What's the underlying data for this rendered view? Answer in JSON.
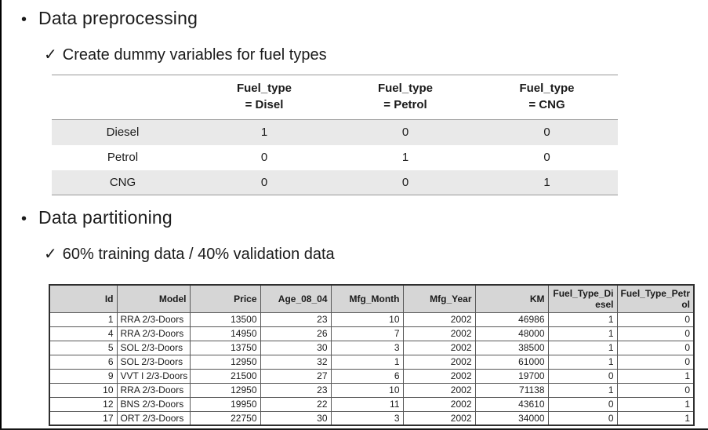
{
  "icons": {
    "bullet": "•",
    "check": "✓"
  },
  "sections": [
    {
      "title": "Data preprocessing",
      "subtitle": "Create dummy variables for fuel types"
    },
    {
      "title": "Data partitioning",
      "subtitle": "60% training data / 40% validation data"
    }
  ],
  "dummy_table": {
    "header": [
      "",
      "Fuel_type\n= Disel",
      "Fuel_type\n= Petrol",
      "Fuel_type\n= CNG"
    ],
    "rows": [
      {
        "label": "Diesel",
        "values": [
          "1",
          "0",
          "0"
        ]
      },
      {
        "label": "Petrol",
        "values": [
          "0",
          "1",
          "0"
        ]
      },
      {
        "label": "CNG",
        "values": [
          "0",
          "0",
          "1"
        ]
      }
    ]
  },
  "data_table": {
    "columns": [
      "Id",
      "Model",
      "Price",
      "Age_08_04",
      "Mfg_Month",
      "Mfg_Year",
      "KM",
      "Fuel_Type_Diesel",
      "Fuel_Type_Petrol"
    ],
    "rows": [
      [
        "1",
        "RRA 2/3-Doors",
        "13500",
        "23",
        "10",
        "2002",
        "46986",
        "1",
        "0"
      ],
      [
        "4",
        "RRA 2/3-Doors",
        "14950",
        "26",
        "7",
        "2002",
        "48000",
        "1",
        "0"
      ],
      [
        "5",
        "SOL 2/3-Doors",
        "13750",
        "30",
        "3",
        "2002",
        "38500",
        "1",
        "0"
      ],
      [
        "6",
        "SOL 2/3-Doors",
        "12950",
        "32",
        "1",
        "2002",
        "61000",
        "1",
        "0"
      ],
      [
        "9",
        "VVT I 2/3-Doors",
        "21500",
        "27",
        "6",
        "2002",
        "19700",
        "0",
        "1"
      ],
      [
        "10",
        "RRA 2/3-Doors",
        "12950",
        "23",
        "10",
        "2002",
        "71138",
        "1",
        "0"
      ],
      [
        "12",
        "BNS 2/3-Doors",
        "19950",
        "22",
        "11",
        "2002",
        "43610",
        "0",
        "1"
      ],
      [
        "17",
        "ORT 2/3-Doors",
        "22750",
        "30",
        "3",
        "2002",
        "34000",
        "0",
        "1"
      ]
    ]
  }
}
